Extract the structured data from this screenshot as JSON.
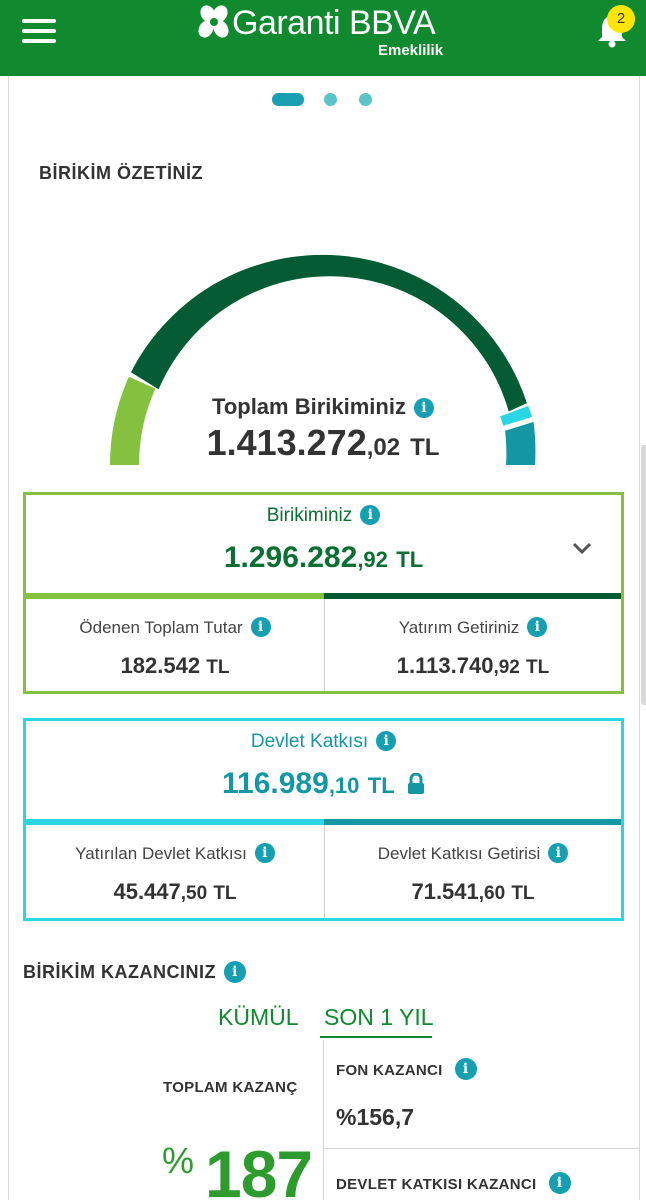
{
  "header": {
    "brand": "Garanti BBVA",
    "brand_sub": "Emeklilik",
    "notification_count": "2",
    "bg_color": "#10892f"
  },
  "carousel": {
    "count": 3,
    "active": 0
  },
  "summary": {
    "title": "BİRİKİM ÖZETİNİZ",
    "total_label": "Toplam Birikiminiz",
    "total_value_main": "1.413.272",
    "total_value_decimal": ",02",
    "currency": "TL"
  },
  "gauge": {
    "segments": [
      {
        "name": "Ödenen Toplam Tutar",
        "color": "#84c13f"
      },
      {
        "name": "Yatırım Getiriniz",
        "color": "#045b34"
      },
      {
        "name": "Yatırılan Devlet Katkısı",
        "color": "#2ad6e2"
      },
      {
        "name": "Devlet Katkısı Getirisi",
        "color": "#1597a3"
      }
    ]
  },
  "birikim_card": {
    "label": "Birikiminiz",
    "value_main": "1.296.282",
    "value_decimal": ",92",
    "currency": "TL",
    "left_label": "Ödenen Toplam Tutar",
    "left_value_main": "182.542",
    "left_value_decimal": "",
    "right_label": "Yatırım Getiriniz",
    "right_value_main": "1.113.740",
    "right_value_decimal": ",92",
    "border_color": "#84c13f",
    "value_color": "#0b6e33"
  },
  "devlet_card": {
    "label": "Devlet Katkısı",
    "value_main": "116.989",
    "value_decimal": ",10",
    "currency": "TL",
    "left_label": "Yatırılan Devlet Katkısı",
    "left_value_main": "45.447",
    "left_value_decimal": ",50",
    "right_label": "Devlet Katkısı Getirisi",
    "right_value_main": "71.541",
    "right_value_decimal": ",60",
    "border_color": "#2ad6e2",
    "value_color": "#1597a3"
  },
  "kazanc": {
    "title": "BİRİKİM KAZANCINIZ",
    "tab_cumulative": "KÜMÜL",
    "tab_year": "SON 1 YIL",
    "total_label": "TOPLAM KAZANÇ",
    "total_prefix": "%",
    "total_value": "187",
    "fon_label": "FON KAZANCI",
    "fon_value": "%156,7",
    "dk_label": "DEVLET KATKISI KAZANCI"
  },
  "info_glyph": "i"
}
